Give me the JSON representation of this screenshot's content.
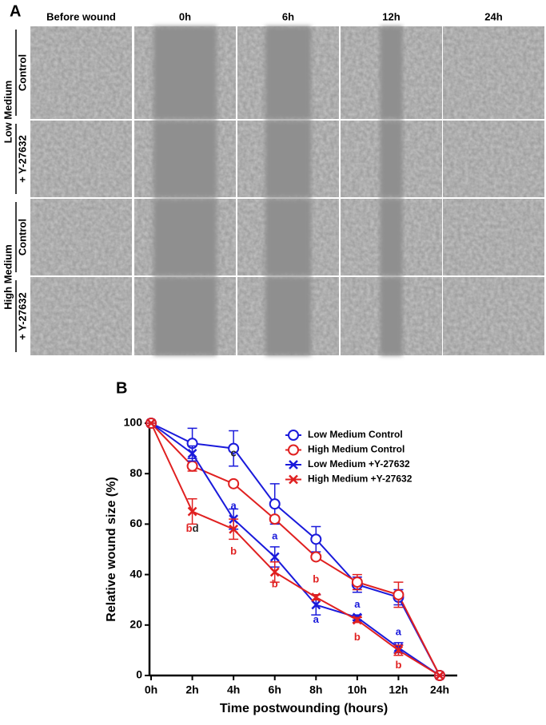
{
  "panel_a": {
    "label": "A",
    "columns": [
      "Before wound",
      "0h",
      "6h",
      "12h",
      "24h"
    ],
    "row_groups": [
      {
        "name": "Low Medium",
        "rows": [
          "Control",
          "+ Y-27632"
        ]
      },
      {
        "name": "High Medium",
        "rows": [
          "Control",
          "+ Y-27632"
        ]
      }
    ]
  },
  "chart_data": {
    "type": "line",
    "panel_label": "B",
    "x_label": "Time postwounding (hours)",
    "y_label": "Relative wound size (%)",
    "categories": [
      "0h",
      "2h",
      "4h",
      "6h",
      "8h",
      "10h",
      "12h",
      "24h"
    ],
    "ylim": [
      0,
      100
    ],
    "yticks": [
      0,
      20,
      40,
      60,
      80,
      100
    ],
    "legend": "upper right",
    "series": [
      {
        "name": "Low Medium Control",
        "color": "#1a1adb",
        "marker": "circle",
        "values": [
          100,
          92,
          90,
          68,
          54,
          36,
          31,
          0
        ],
        "errors": [
          0,
          6,
          7,
          8,
          5,
          3,
          3,
          0
        ]
      },
      {
        "name": "High Medium Control",
        "color": "#e02020",
        "marker": "circle",
        "values": [
          100,
          83,
          76,
          62,
          47,
          37,
          32,
          0
        ],
        "errors": [
          0,
          2,
          1,
          1,
          1,
          3,
          5,
          0
        ]
      },
      {
        "name": "Low Medium +Y-27632",
        "color": "#1a1adb",
        "marker": "x",
        "values": [
          100,
          88,
          62,
          47,
          28,
          23,
          11,
          0
        ],
        "errors": [
          0,
          3,
          4,
          4,
          4,
          1,
          2,
          0
        ]
      },
      {
        "name": "High Medium +Y-27632",
        "color": "#e02020",
        "marker": "x",
        "values": [
          100,
          65,
          58,
          41,
          31,
          22,
          10,
          0
        ],
        "errors": [
          0,
          5,
          4,
          4,
          1,
          1,
          2,
          0
        ]
      }
    ],
    "annotations": [
      {
        "category": "2h",
        "y": 58,
        "parts": [
          {
            "text": "b",
            "color": "#e02020"
          },
          {
            "text": "d",
            "color": "#222222"
          }
        ]
      },
      {
        "category": "4h",
        "y": 88,
        "parts": [
          {
            "text": "c",
            "color": "#222222"
          }
        ]
      },
      {
        "category": "4h",
        "y": 67,
        "parts": [
          {
            "text": "a",
            "color": "#1a1adb"
          }
        ]
      },
      {
        "category": "4h",
        "y": 49,
        "parts": [
          {
            "text": "b",
            "color": "#e02020"
          }
        ]
      },
      {
        "category": "6h",
        "y": 55,
        "parts": [
          {
            "text": "a",
            "color": "#1a1adb"
          }
        ]
      },
      {
        "category": "6h",
        "y": 36,
        "parts": [
          {
            "text": "b",
            "color": "#e02020"
          }
        ]
      },
      {
        "category": "8h",
        "y": 38,
        "parts": [
          {
            "text": "b",
            "color": "#e02020"
          }
        ]
      },
      {
        "category": "8h",
        "y": 22,
        "parts": [
          {
            "text": "a",
            "color": "#1a1adb"
          }
        ]
      },
      {
        "category": "10h",
        "y": 28,
        "parts": [
          {
            "text": "a",
            "color": "#1a1adb"
          }
        ]
      },
      {
        "category": "10h",
        "y": 15,
        "parts": [
          {
            "text": "b",
            "color": "#e02020"
          }
        ]
      },
      {
        "category": "12h",
        "y": 17,
        "parts": [
          {
            "text": "a",
            "color": "#1a1adb"
          }
        ]
      },
      {
        "category": "12h",
        "y": 4,
        "parts": [
          {
            "text": "b",
            "color": "#e02020"
          }
        ]
      }
    ]
  }
}
